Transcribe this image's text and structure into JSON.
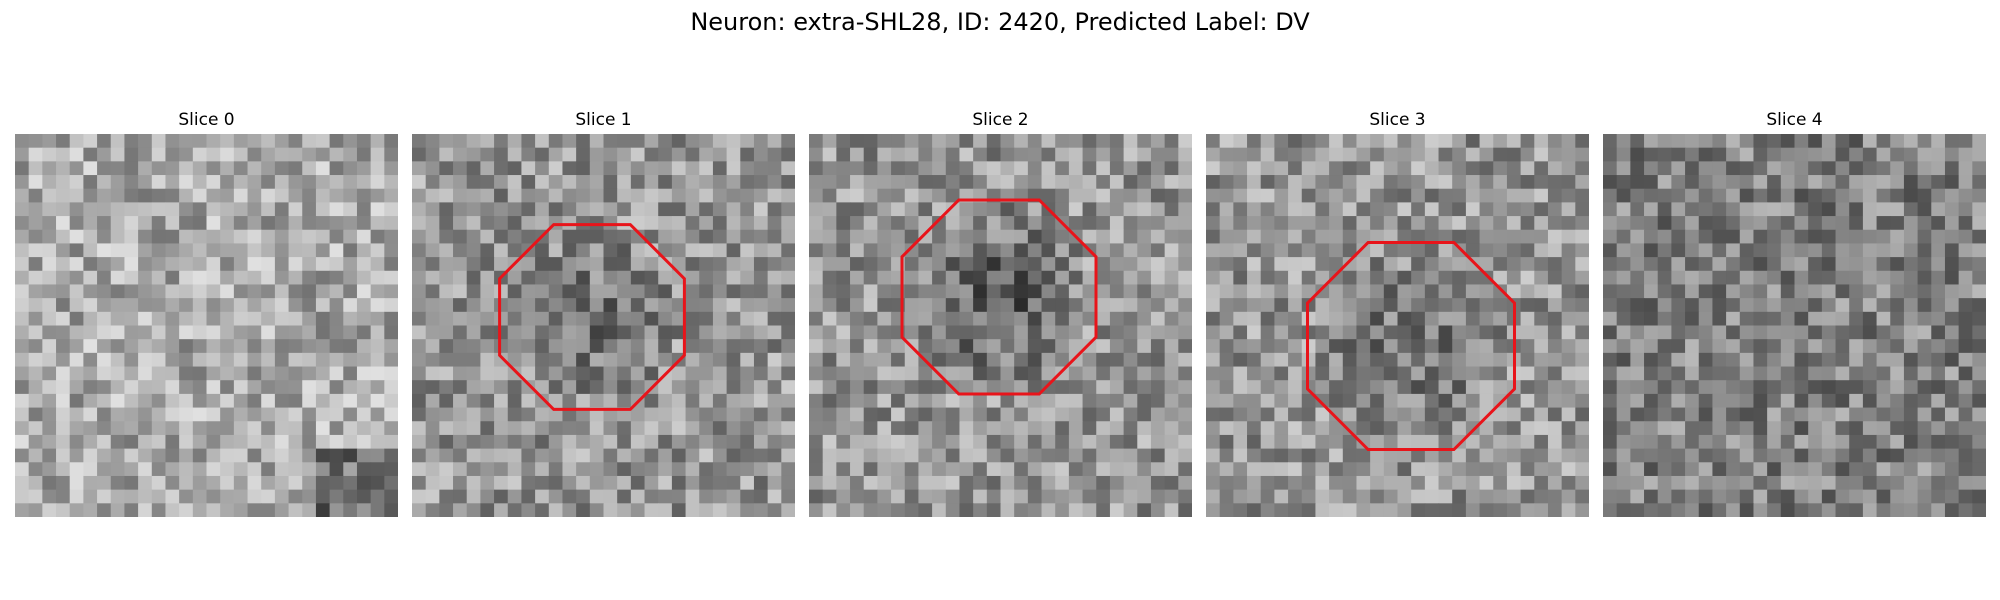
{
  "figure": {
    "title": "Neuron: extra-SHL28, ID: 2420, Predicted Label: DV"
  },
  "panels": [
    {
      "title": "Slice 0",
      "has_roi": false,
      "seed": 11,
      "pattern": "bright"
    },
    {
      "title": "Slice 1",
      "has_roi": true,
      "seed": 23,
      "pattern": "dark-center"
    },
    {
      "title": "Slice 2",
      "has_roi": true,
      "seed": 37,
      "pattern": "dark-center-strong"
    },
    {
      "title": "Slice 3",
      "has_roi": true,
      "seed": 41,
      "pattern": "dark-center"
    },
    {
      "title": "Slice 4",
      "has_roi": false,
      "seed": 59,
      "pattern": "noise"
    }
  ],
  "colors": {
    "roi_outline": "#e8141a",
    "background": "#ffffff"
  }
}
